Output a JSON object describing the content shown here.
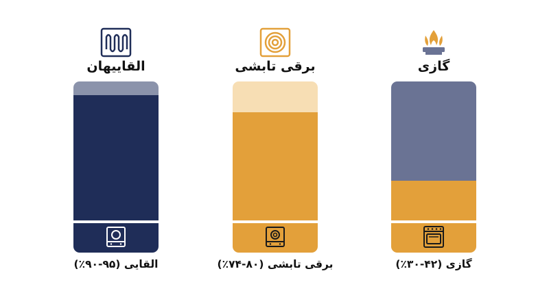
{
  "chart_data": {
    "type": "bar",
    "categories": [
      "القایی",
      "برقی تابشی",
      "گازی"
    ],
    "titles": [
      "القاییهان",
      "برقی تابشی",
      "گازی"
    ],
    "labels": [
      "القایی (۹۵-۹۰٪)",
      "برقی تابشی (۸۰-۷۴٪)",
      "گازی (۴۲-۳۰٪)"
    ],
    "ranges": [
      [
        90,
        95
      ],
      [
        74,
        80
      ],
      [
        30,
        42
      ]
    ],
    "fill_fraction": [
      0.92,
      0.82,
      0.42
    ],
    "colors": {
      "induction_fill": "#1f2d58",
      "induction_empty": "#8b93ab",
      "radiant_fill": "#e3a03a",
      "radiant_empty": "#f7deb4",
      "gas_fill": "#e3a03a",
      "gas_empty": "#6a7394"
    },
    "icons": [
      "induction-coil-icon",
      "radiant-coil-icon",
      "gas-flame-icon",
      "induction-cooktop-icon",
      "radiant-cooktop-icon",
      "gas-stove-icon"
    ]
  }
}
